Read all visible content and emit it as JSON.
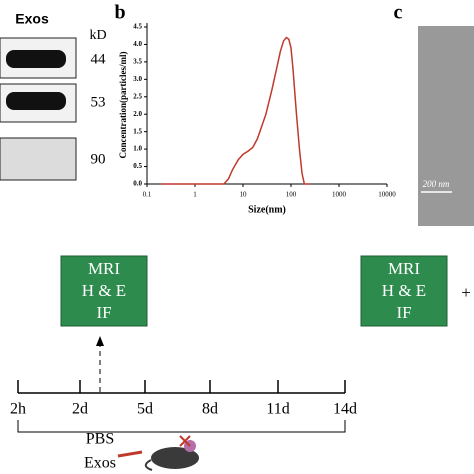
{
  "blot": {
    "header": "Exos",
    "unit": "kD",
    "markers": [
      "44",
      "53",
      "90"
    ]
  },
  "panel_labels": [
    "b",
    "c"
  ],
  "chart_data": {
    "type": "line",
    "xlabel": "Size(nm)",
    "ylabel": "Concentration(particles/ml)",
    "x": [
      0.2,
      4,
      5,
      6,
      8,
      10,
      13,
      16,
      20,
      30,
      40,
      50,
      60,
      70,
      80,
      90,
      100,
      110,
      130,
      150,
      170,
      190,
      250
    ],
    "values": [
      0,
      0,
      0.15,
      0.4,
      0.7,
      0.85,
      0.95,
      1.05,
      1.3,
      2.0,
      2.7,
      3.3,
      3.8,
      4.1,
      4.2,
      4.15,
      3.9,
      3.3,
      2.0,
      1.0,
      0.3,
      0,
      0
    ],
    "color": "#c0392b",
    "xscale": "log",
    "xlim": [
      0.1,
      10000
    ],
    "xticks": [
      0.1,
      1,
      10,
      100,
      1000,
      10000
    ],
    "ylim": [
      0,
      4.5
    ],
    "yticks": [
      {
        "value": 0,
        "label": "0.0"
      },
      0.5,
      {
        "value": 1,
        "label": "1.0"
      },
      1.5,
      {
        "value": 2,
        "label": "2.0"
      },
      2.5,
      {
        "value": 3,
        "label": "3.0"
      },
      3.5,
      {
        "value": 4,
        "label": "4.0"
      },
      4.5
    ]
  },
  "tem": {
    "scale_bar": "200 nm"
  },
  "timeline": {
    "boxes": [
      [
        "MRI",
        "H & E",
        "IF"
      ],
      [
        "MRI",
        "H & E",
        "IF"
      ]
    ],
    "plus": "+",
    "timepoints": [
      "2h",
      "2d",
      "5d",
      "8d",
      "11d",
      "14d"
    ],
    "treatments": [
      "PBS",
      "Exos"
    ]
  }
}
